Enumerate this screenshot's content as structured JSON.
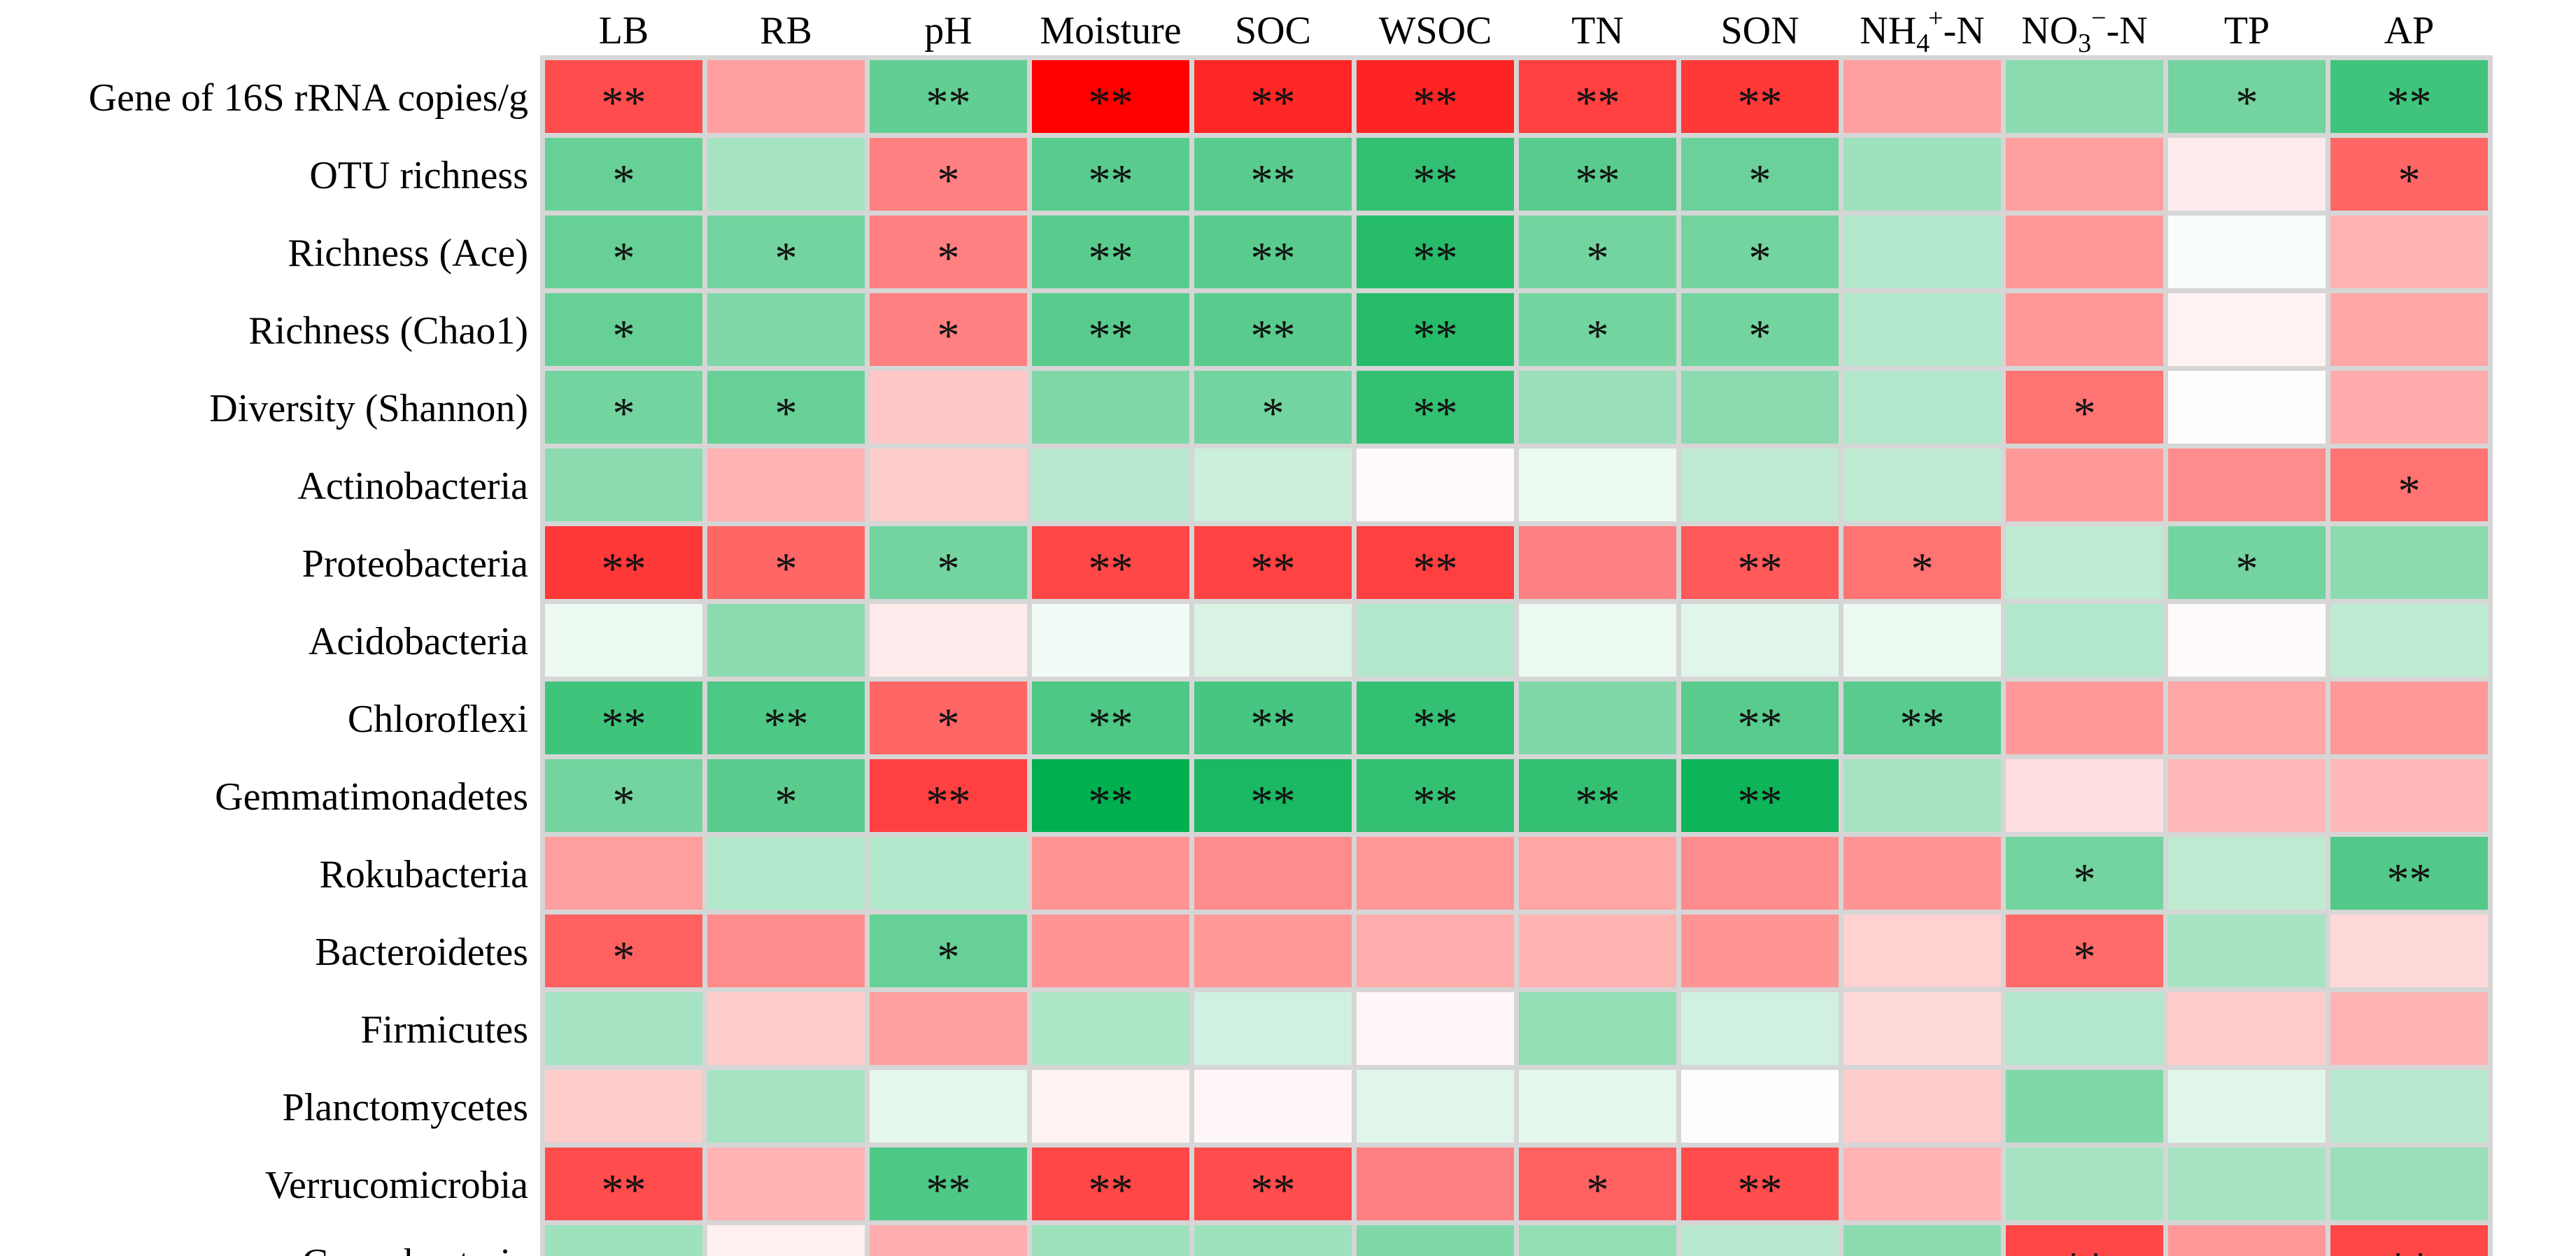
{
  "chart_data": {
    "type": "heatmap",
    "title": "",
    "columns": [
      "LB",
      "RB",
      "pH",
      "Moisture",
      "SOC",
      "WSOC",
      "TN",
      "SON",
      "NH4+-N",
      "NO3−-N",
      "TP",
      "AP"
    ],
    "rows": [
      "Gene of 16S rRNA copies/g",
      "OTU richness",
      "Richness (Ace)",
      "Richness (Chao1)",
      "Diversity (Shannon)",
      "Actinobacteria",
      "Proteobacteria",
      "Acidobacteria",
      "Chloroflexi",
      "Gemmatimonadetes",
      "Rokubacteria",
      "Bacteroidetes",
      "Firmicutes",
      "Planctomycetes",
      "Verrucomicrobia",
      "Cyanobacteria"
    ],
    "color_scale": {
      "min": -1,
      "max": 1,
      "negative_color": "#00b050",
      "neutral_color": "#ffffff",
      "positive_color": "#ff0000",
      "grid_color": "#d6d6d6"
    },
    "values": [
      [
        0.7,
        0.38,
        -0.62,
        1.0,
        0.85,
        0.86,
        0.75,
        0.78,
        0.38,
        -0.45,
        -0.55,
        -0.75
      ],
      [
        -0.6,
        -0.35,
        0.5,
        -0.65,
        -0.65,
        -0.8,
        -0.65,
        -0.58,
        -0.38,
        0.38,
        0.08,
        0.6
      ],
      [
        -0.6,
        -0.55,
        0.5,
        -0.65,
        -0.65,
        -0.85,
        -0.55,
        -0.55,
        -0.3,
        0.4,
        -0.03,
        0.3
      ],
      [
        -0.6,
        -0.5,
        0.5,
        -0.65,
        -0.65,
        -0.85,
        -0.55,
        -0.55,
        -0.3,
        0.4,
        0.05,
        0.35
      ],
      [
        -0.55,
        -0.6,
        0.22,
        -0.5,
        -0.55,
        -0.8,
        -0.4,
        -0.45,
        -0.3,
        0.55,
        0.01,
        0.33
      ],
      [
        -0.45,
        0.3,
        0.2,
        -0.28,
        -0.2,
        0.02,
        -0.08,
        -0.25,
        -0.25,
        0.4,
        0.45,
        0.55
      ],
      [
        0.78,
        0.6,
        -0.55,
        0.72,
        0.74,
        0.75,
        0.5,
        0.65,
        0.55,
        -0.25,
        -0.55,
        -0.45
      ],
      [
        -0.08,
        -0.45,
        0.08,
        -0.05,
        -0.15,
        -0.3,
        -0.08,
        -0.12,
        -0.08,
        -0.3,
        0.02,
        -0.25
      ],
      [
        -0.75,
        -0.7,
        0.6,
        -0.7,
        -0.72,
        -0.8,
        -0.5,
        -0.65,
        -0.65,
        0.4,
        0.35,
        0.4
      ],
      [
        -0.55,
        -0.65,
        0.75,
        -1.0,
        -0.9,
        -0.8,
        -0.8,
        -0.95,
        -0.35,
        0.12,
        0.28,
        0.28
      ],
      [
        0.38,
        -0.3,
        -0.3,
        0.42,
        0.45,
        0.4,
        0.35,
        0.45,
        0.42,
        -0.55,
        -0.25,
        -0.68
      ],
      [
        0.62,
        0.45,
        -0.6,
        0.42,
        0.4,
        0.32,
        0.3,
        0.42,
        0.18,
        0.58,
        -0.35,
        0.15
      ],
      [
        -0.35,
        0.2,
        0.38,
        -0.32,
        -0.18,
        0.03,
        -0.42,
        -0.18,
        0.15,
        -0.3,
        0.2,
        0.3
      ],
      [
        0.2,
        -0.35,
        -0.1,
        0.05,
        0.03,
        -0.12,
        -0.1,
        0.01,
        0.2,
        -0.5,
        -0.12,
        -0.28
      ],
      [
        0.7,
        0.3,
        -0.7,
        0.72,
        0.7,
        0.5,
        0.62,
        0.7,
        0.3,
        -0.35,
        -0.35,
        -0.4
      ],
      [
        -0.38,
        0.06,
        0.32,
        -0.38,
        -0.38,
        -0.5,
        -0.42,
        -0.28,
        -0.45,
        0.72,
        0.4,
        0.72
      ]
    ],
    "significance": [
      [
        "**",
        "",
        "**",
        "**",
        "**",
        "**",
        "**",
        "**",
        "",
        "",
        "*",
        "**"
      ],
      [
        "*",
        "",
        "*",
        "**",
        "**",
        "**",
        "**",
        "*",
        "",
        "",
        "",
        "*"
      ],
      [
        "*",
        "*",
        "*",
        "**",
        "**",
        "**",
        "*",
        "*",
        "",
        "",
        "",
        ""
      ],
      [
        "*",
        "",
        "*",
        "**",
        "**",
        "**",
        "*",
        "*",
        "",
        "",
        "",
        ""
      ],
      [
        "*",
        "*",
        "",
        "",
        "*",
        "**",
        "",
        "",
        "",
        "*",
        "",
        ""
      ],
      [
        "",
        "",
        "",
        "",
        "",
        "",
        "",
        "",
        "",
        "",
        "",
        "*"
      ],
      [
        "**",
        "*",
        "*",
        "**",
        "**",
        "**",
        "",
        "**",
        "*",
        "",
        "*",
        ""
      ],
      [
        "",
        "",
        "",
        "",
        "",
        "",
        "",
        "",
        "",
        "",
        "",
        ""
      ],
      [
        "**",
        "**",
        "*",
        "**",
        "**",
        "**",
        "",
        "**",
        "**",
        "",
        "",
        ""
      ],
      [
        "*",
        "*",
        "**",
        "**",
        "**",
        "**",
        "**",
        "**",
        "",
        "",
        "",
        ""
      ],
      [
        "",
        "",
        "",
        "",
        "",
        "",
        "",
        "",
        "",
        "*",
        "",
        "**"
      ],
      [
        "*",
        "",
        "*",
        "",
        "",
        "",
        "",
        "",
        "",
        "*",
        "",
        ""
      ],
      [
        "",
        "",
        "",
        "",
        "",
        "",
        "",
        "",
        "",
        "",
        "",
        ""
      ],
      [
        "",
        "",
        "",
        "",
        "",
        "",
        "",
        "",
        "",
        "",
        "",
        ""
      ],
      [
        "**",
        "",
        "**",
        "**",
        "**",
        "",
        "*",
        "**",
        "",
        "",
        "",
        ""
      ],
      [
        "",
        "",
        "",
        "",
        "",
        "",
        "",
        "",
        "",
        "**",
        "",
        "**"
      ]
    ]
  }
}
